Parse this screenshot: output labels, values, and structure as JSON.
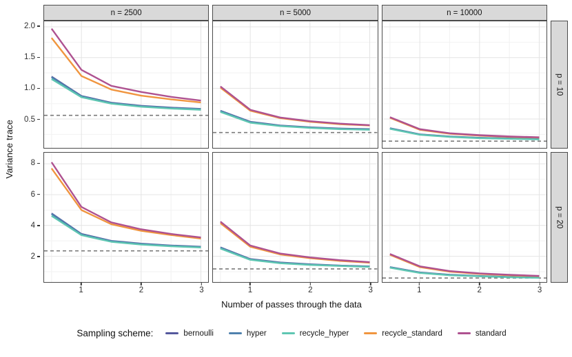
{
  "chart_data": {
    "type": "line",
    "title": "",
    "xlabel": "Number of passes through the data",
    "ylabel": "Variance trace",
    "legend_title": "Sampling scheme:",
    "legend_position": "bottom",
    "grid": "on",
    "facet_layout": "3 columns (n) by 2 rows (p)",
    "col_facets": [
      "n = 2500",
      "n = 5000",
      "n = 10000"
    ],
    "row_facets": [
      "p = 10",
      "p = 20"
    ],
    "x": [
      0.5,
      1,
      1.5,
      2,
      2.5,
      3
    ],
    "x_range": [
      0.375,
      3.125
    ],
    "x_ticks": [
      1,
      2,
      3
    ],
    "x_tick_labels": [
      "1",
      "2",
      "3"
    ],
    "x_minor": [
      0.5,
      1.5,
      2.5
    ],
    "series_order": [
      "bernoulli",
      "hyper",
      "recycle_hyper",
      "recycle_standard",
      "standard"
    ],
    "colors": {
      "bernoulli": "#54589d",
      "hyper": "#4f81ad",
      "recycle_hyper": "#5ec6b2",
      "recycle_standard": "#f0953f",
      "standard": "#ae5190",
      "reference_line": "#7a7a7a",
      "strip_background": "#d9d9d9",
      "panel_border": "#4a4a4a",
      "grid_major": "#e4e4e4"
    },
    "rows": [
      {
        "label": "p = 10",
        "y_range": [
          0.03,
          2.09
        ],
        "y_ticks": [
          0.5,
          1.0,
          1.5,
          2.0
        ],
        "y_tick_labels": [
          "0.5",
          "1.0",
          "1.5",
          "2.0"
        ],
        "y_minor": [
          0.25,
          0.75,
          1.25,
          1.75
        ]
      },
      {
        "label": "p = 20",
        "y_range": [
          0.33,
          8.72
        ],
        "y_ticks": [
          2,
          4,
          6,
          8
        ],
        "y_tick_labels": [
          "2",
          "4",
          "6",
          "8"
        ],
        "y_minor": [
          1,
          3,
          5,
          7
        ]
      }
    ],
    "panels": [
      {
        "row": 0,
        "col": 0,
        "facet": "n = 2500, p = 10",
        "dashed_ref": 0.56,
        "series": {
          "bernoulli": [
            1.19,
            0.875,
            0.765,
            0.715,
            0.685,
            0.665
          ],
          "hyper": [
            1.18,
            0.87,
            0.76,
            0.71,
            0.68,
            0.66
          ],
          "recycle_hyper": [
            1.15,
            0.855,
            0.75,
            0.7,
            0.67,
            0.65
          ],
          "recycle_standard": [
            1.82,
            1.2,
            0.98,
            0.88,
            0.82,
            0.77
          ],
          "standard": [
            1.97,
            1.3,
            1.04,
            0.94,
            0.86,
            0.8
          ]
        }
      },
      {
        "row": 0,
        "col": 1,
        "facet": "n = 5000, p = 10",
        "dashed_ref": 0.28,
        "series": {
          "bernoulli": [
            0.635,
            0.455,
            0.395,
            0.365,
            0.345,
            0.335
          ],
          "hyper": [
            0.63,
            0.45,
            0.39,
            0.36,
            0.34,
            0.33
          ],
          "recycle_hyper": [
            0.615,
            0.44,
            0.385,
            0.355,
            0.335,
            0.325
          ],
          "recycle_standard": [
            1.01,
            0.635,
            0.515,
            0.455,
            0.415,
            0.395
          ],
          "standard": [
            1.03,
            0.65,
            0.525,
            0.465,
            0.425,
            0.4
          ]
        }
      },
      {
        "row": 0,
        "col": 2,
        "facet": "n = 10000, p = 10",
        "dashed_ref": 0.14,
        "series": {
          "bernoulli": [
            0.35,
            0.25,
            0.215,
            0.195,
            0.185,
            0.175
          ],
          "hyper": [
            0.348,
            0.248,
            0.213,
            0.193,
            0.183,
            0.173
          ],
          "recycle_hyper": [
            0.34,
            0.243,
            0.208,
            0.188,
            0.178,
            0.168
          ],
          "recycle_standard": [
            0.52,
            0.325,
            0.26,
            0.23,
            0.21,
            0.198
          ],
          "standard": [
            0.53,
            0.335,
            0.268,
            0.237,
            0.216,
            0.203
          ]
        }
      },
      {
        "row": 1,
        "col": 0,
        "facet": "n = 2500, p = 20",
        "dashed_ref": 2.35,
        "series": {
          "bernoulli": [
            4.78,
            3.45,
            3.0,
            2.82,
            2.7,
            2.62
          ],
          "hyper": [
            4.75,
            3.43,
            2.98,
            2.8,
            2.68,
            2.6
          ],
          "recycle_hyper": [
            4.62,
            3.37,
            2.94,
            2.76,
            2.65,
            2.57
          ],
          "recycle_standard": [
            7.7,
            5.0,
            4.08,
            3.65,
            3.38,
            3.15
          ],
          "standard": [
            8.1,
            5.2,
            4.2,
            3.75,
            3.45,
            3.22
          ]
        }
      },
      {
        "row": 1,
        "col": 1,
        "facet": "n = 5000, p = 20",
        "dashed_ref": 1.18,
        "series": {
          "bernoulli": [
            2.58,
            1.82,
            1.6,
            1.48,
            1.4,
            1.34
          ],
          "hyper": [
            2.56,
            1.8,
            1.58,
            1.46,
            1.39,
            1.33
          ],
          "recycle_hyper": [
            2.5,
            1.77,
            1.55,
            1.44,
            1.37,
            1.31
          ],
          "recycle_standard": [
            4.15,
            2.62,
            2.12,
            1.88,
            1.7,
            1.58
          ],
          "standard": [
            4.25,
            2.7,
            2.18,
            1.93,
            1.75,
            1.62
          ]
        }
      },
      {
        "row": 1,
        "col": 2,
        "facet": "n = 10000, p = 20",
        "dashed_ref": 0.59,
        "series": {
          "bernoulli": [
            1.3,
            0.95,
            0.8,
            0.72,
            0.66,
            0.62
          ],
          "hyper": [
            1.29,
            0.94,
            0.79,
            0.71,
            0.65,
            0.61
          ],
          "recycle_hyper": [
            1.26,
            0.92,
            0.77,
            0.7,
            0.64,
            0.6
          ],
          "recycle_standard": [
            2.1,
            1.3,
            1.0,
            0.86,
            0.77,
            0.71
          ],
          "standard": [
            2.15,
            1.35,
            1.04,
            0.89,
            0.8,
            0.73
          ]
        }
      }
    ]
  }
}
